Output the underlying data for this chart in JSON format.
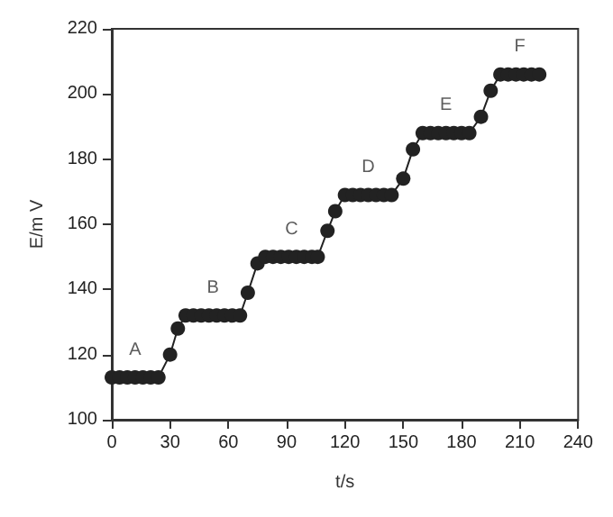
{
  "chart_data": {
    "type": "line",
    "xlabel": "t/s",
    "ylabel": "E/m V",
    "xlim": [
      0,
      240
    ],
    "xticks": [
      0,
      30,
      60,
      90,
      120,
      150,
      180,
      210,
      240
    ],
    "ylim": [
      100,
      220
    ],
    "yticks": [
      100,
      120,
      140,
      160,
      180,
      200,
      220
    ],
    "grid": false,
    "marker": "circle",
    "line_style": "solid",
    "series": [
      {
        "color": "#222222",
        "x": [
          0,
          4,
          8,
          12,
          16,
          20,
          24,
          30,
          34,
          38,
          42,
          46,
          50,
          54,
          58,
          62,
          66,
          70,
          75,
          79,
          83,
          87,
          91,
          95,
          99,
          103,
          106,
          111,
          115,
          120,
          124,
          128,
          132,
          136,
          140,
          144,
          150,
          155,
          160,
          164,
          168,
          172,
          176,
          180,
          184,
          190,
          195,
          200,
          204,
          208,
          212,
          216,
          220
        ],
        "values": [
          113,
          113,
          113,
          113,
          113,
          113,
          113,
          120,
          128,
          132,
          132,
          132,
          132,
          132,
          132,
          132,
          132,
          139,
          148,
          150,
          150,
          150,
          150,
          150,
          150,
          150,
          150,
          158,
          164,
          169,
          169,
          169,
          169,
          169,
          169,
          169,
          174,
          183,
          188,
          188,
          188,
          188,
          188,
          188,
          188,
          193,
          201,
          206,
          206,
          206,
          206,
          206,
          206
        ]
      }
    ],
    "annotations": [
      "A",
      "B",
      "C",
      "D",
      "E",
      "F"
    ]
  }
}
